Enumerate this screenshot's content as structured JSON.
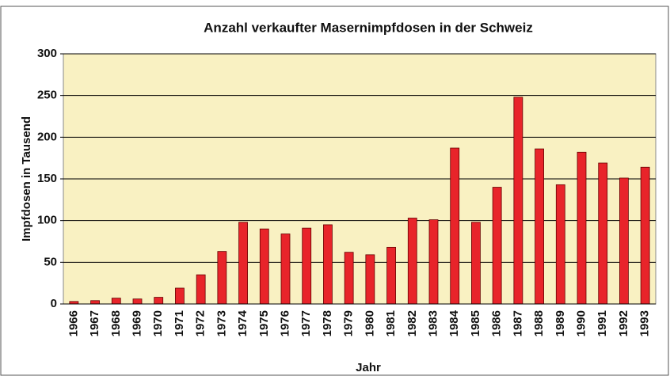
{
  "chart_data": {
    "type": "bar",
    "title": "Anzahl verkaufter Masernimpfdosen in der Schweiz",
    "x_label": "Jahr",
    "y_label": "Impfdosen in Tausend",
    "categories": [
      "1966",
      "1967",
      "1968",
      "1969",
      "1970",
      "1971",
      "1972",
      "1973",
      "1974",
      "1975",
      "1976",
      "1977",
      "1978",
      "1979",
      "1980",
      "1981",
      "1982",
      "1983",
      "1984",
      "1985",
      "1986",
      "1987",
      "1988",
      "1989",
      "1990",
      "1991",
      "1992",
      "1993"
    ],
    "values": [
      3,
      4,
      7,
      6,
      8,
      19,
      35,
      63,
      98,
      90,
      84,
      91,
      95,
      62,
      59,
      68,
      103,
      101,
      187,
      98,
      140,
      248,
      186,
      143,
      182,
      169,
      151,
      164
    ],
    "color": "#e8242a",
    "ylim": [
      0,
      300
    ],
    "yticks": [
      0,
      50,
      100,
      150,
      200,
      250,
      300
    ],
    "grid": true
  }
}
